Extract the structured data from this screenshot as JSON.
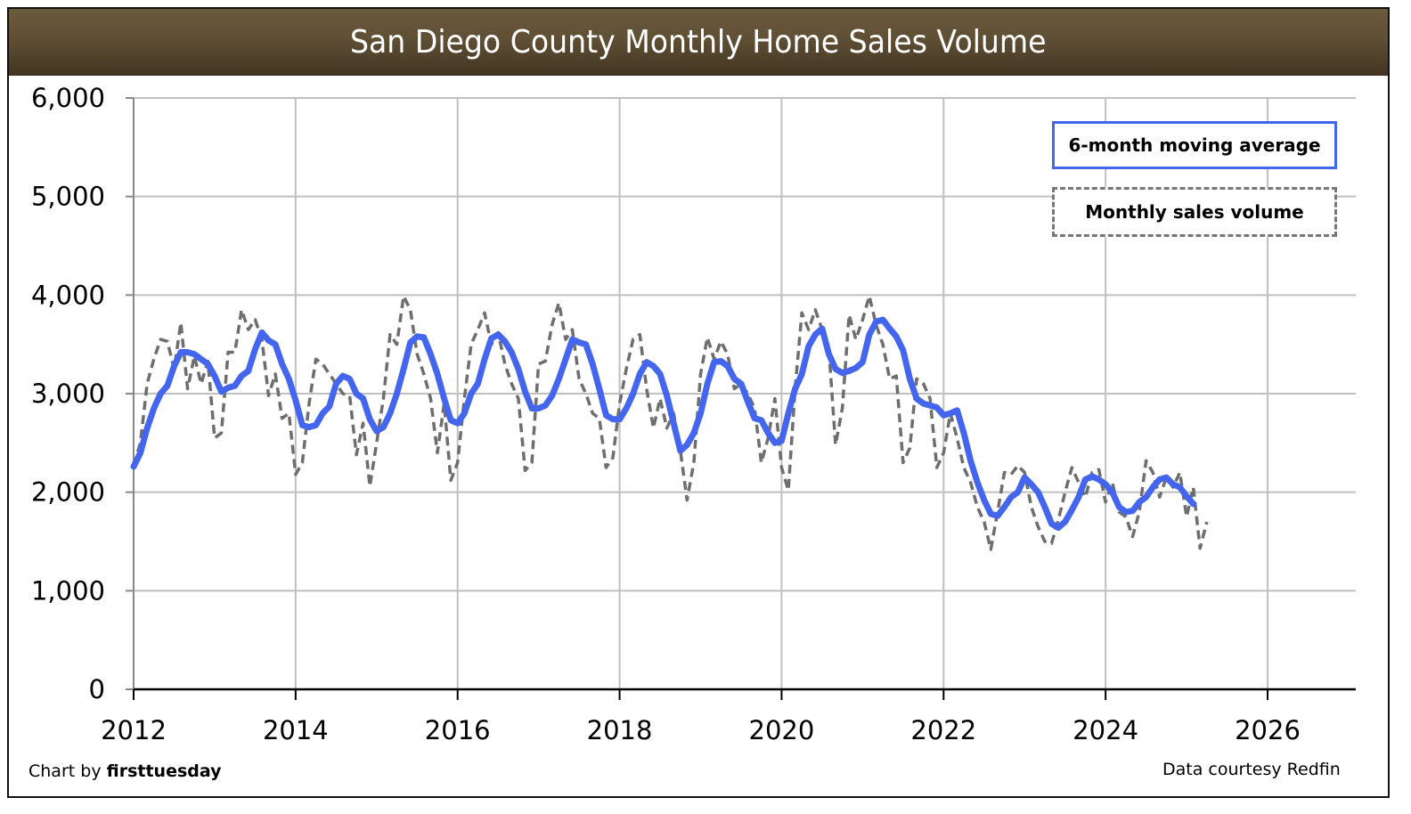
{
  "header": {
    "title": "San Diego County Monthly Home Sales Volume"
  },
  "footer": {
    "credit_prefix": "Chart by ",
    "credit_brand": "firsttuesday",
    "source": "Data courtesy Redfin"
  },
  "colors": {
    "header_top": "#6b5a3c",
    "header_bottom": "#423422",
    "moving_average": "#4466ee",
    "monthly": "#6e6e6e",
    "grid": "#c0c0c0"
  },
  "chart_data": {
    "type": "line",
    "title": "San Diego County Monthly Home Sales Volume",
    "xlabel": "",
    "ylabel": "",
    "xlim": [
      2012,
      2027.5
    ],
    "ylim": [
      0,
      6000
    ],
    "grid": true,
    "legend_position": "top-right",
    "x_start": "2012-01",
    "x_step": "month",
    "x_ticks": [
      "2012",
      "2014",
      "2016",
      "2018",
      "2020",
      "2022",
      "2024",
      "2026"
    ],
    "x_tick_values": [
      2012,
      2014,
      2016,
      2018,
      2020,
      2022,
      2024,
      2026
    ],
    "y_ticks": [
      "0",
      "1,000",
      "2,000",
      "3,000",
      "4,000",
      "5,000",
      "6,000"
    ],
    "y_tick_values": [
      0,
      1000,
      2000,
      3000,
      4000,
      5000,
      6000
    ],
    "legend": [
      "6-month moving average",
      "Monthly sales volume"
    ],
    "series": [
      {
        "name": "Monthly sales volume",
        "style": "dashed",
        "values": [
          2270,
          2500,
          3100,
          3350,
          3550,
          3530,
          3250,
          3720,
          3050,
          3380,
          3100,
          3330,
          2550,
          2600,
          3420,
          3420,
          3850,
          3650,
          3750,
          3550,
          2980,
          3200,
          2750,
          2800,
          2180,
          2300,
          2900,
          3350,
          3300,
          3200,
          3100,
          3000,
          2980,
          2380,
          2700,
          2060,
          2500,
          2950,
          3600,
          3500,
          3990,
          3850,
          3400,
          3200,
          2950,
          2400,
          2900,
          2120,
          2300,
          2950,
          3500,
          3650,
          3820,
          3500,
          3620,
          3300,
          3100,
          2950,
          2220,
          2300,
          3300,
          3330,
          3700,
          3920,
          3550,
          3650,
          3150,
          3000,
          2800,
          2750,
          2250,
          2350,
          2900,
          3250,
          3550,
          3600,
          3050,
          2650,
          2950,
          2650,
          2800,
          2420,
          1920,
          2300,
          3200,
          3570,
          3350,
          3530,
          3400,
          3050,
          3100,
          3000,
          2850,
          2300,
          2550,
          2950,
          2250,
          2020,
          3050,
          3820,
          3650,
          3850,
          3650,
          3450,
          2480,
          2850,
          3800,
          3550,
          3750,
          3990,
          3700,
          3500,
          3150,
          3180,
          2300,
          2450,
          3150,
          3100,
          2950,
          2250,
          2400,
          2800,
          2550,
          2250,
          2100,
          1850,
          1700,
          1420,
          1800,
          2200,
          2180,
          2270,
          2200,
          1850,
          1650,
          1500,
          1480,
          1720,
          2000,
          2250,
          2100,
          1950,
          2200,
          2230,
          1900,
          2100,
          1800,
          1750,
          1550,
          1800,
          2320,
          2200,
          1950,
          2150,
          2050,
          2200,
          1750,
          2050,
          1430,
          1700
        ]
      },
      {
        "name": "6-month moving average",
        "style": "solid",
        "values": [
          2260,
          2400,
          2650,
          2850,
          3000,
          3080,
          3280,
          3420,
          3420,
          3400,
          3350,
          3300,
          3180,
          3020,
          3060,
          3080,
          3180,
          3230,
          3450,
          3620,
          3540,
          3500,
          3300,
          3150,
          2930,
          2680,
          2660,
          2680,
          2800,
          2870,
          3100,
          3180,
          3150,
          3000,
          2950,
          2740,
          2620,
          2660,
          2800,
          3000,
          3250,
          3520,
          3580,
          3570,
          3400,
          3200,
          2950,
          2730,
          2700,
          2800,
          3000,
          3100,
          3350,
          3560,
          3600,
          3530,
          3420,
          3250,
          3020,
          2850,
          2850,
          2880,
          2980,
          3150,
          3350,
          3550,
          3520,
          3500,
          3300,
          3050,
          2780,
          2740,
          2740,
          2850,
          3000,
          3200,
          3320,
          3280,
          3200,
          2980,
          2700,
          2420,
          2480,
          2600,
          2800,
          3100,
          3320,
          3330,
          3280,
          3150,
          3100,
          2920,
          2750,
          2730,
          2600,
          2500,
          2520,
          2800,
          3050,
          3200,
          3480,
          3600,
          3660,
          3400,
          3250,
          3210,
          3230,
          3260,
          3320,
          3600,
          3730,
          3750,
          3660,
          3580,
          3440,
          3150,
          2950,
          2900,
          2880,
          2860,
          2780,
          2800,
          2830,
          2600,
          2320,
          2100,
          1920,
          1780,
          1760,
          1850,
          1950,
          2000,
          2150,
          2080,
          2000,
          1850,
          1680,
          1640,
          1700,
          1820,
          1950,
          2130,
          2160,
          2130,
          2080,
          2000,
          1850,
          1800,
          1810,
          1900,
          1950,
          2050,
          2130,
          2150,
          2080,
          2050,
          1960,
          1880
        ]
      }
    ]
  }
}
